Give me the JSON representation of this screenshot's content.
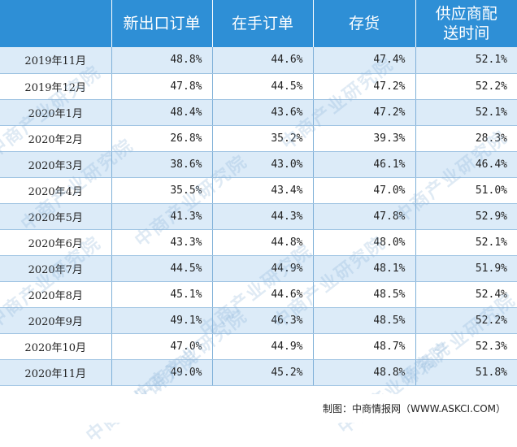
{
  "table": {
    "headers": [
      "",
      "新出口订单",
      "在手订单",
      "存货",
      "供应商配送时间"
    ],
    "rows": [
      [
        "2019年11月",
        "48.8%",
        "44.6%",
        "47.4%",
        "52.1%"
      ],
      [
        "2019年12月",
        "47.8%",
        "44.5%",
        "47.2%",
        "52.2%"
      ],
      [
        "2020年1月",
        "48.4%",
        "43.6%",
        "47.2%",
        "52.1%"
      ],
      [
        "2020年2月",
        "26.8%",
        "35.2%",
        "39.3%",
        "28.3%"
      ],
      [
        "2020年3月",
        "38.6%",
        "43.0%",
        "46.1%",
        "46.4%"
      ],
      [
        "2020年4月",
        "35.5%",
        "43.4%",
        "47.0%",
        "51.0%"
      ],
      [
        "2020年5月",
        "41.3%",
        "44.3%",
        "47.8%",
        "52.9%"
      ],
      [
        "2020年6月",
        "43.3%",
        "44.8%",
        "48.0%",
        "52.1%"
      ],
      [
        "2020年7月",
        "44.5%",
        "44.9%",
        "48.1%",
        "51.9%"
      ],
      [
        "2020年8月",
        "45.1%",
        "44.6%",
        "48.5%",
        "52.4%"
      ],
      [
        "2020年9月",
        "49.1%",
        "46.3%",
        "48.5%",
        "52.2%"
      ],
      [
        "2020年10月",
        "47.0%",
        "44.9%",
        "48.7%",
        "52.3%"
      ],
      [
        "2020年11月",
        "49.0%",
        "45.2%",
        "48.8%",
        "51.8%"
      ]
    ]
  },
  "source_note": "制图：中商情报网（WWW.ASKCI.COM）",
  "watermark_text": "中商产业研究院",
  "colors": {
    "header_bg": "#2e8fd6",
    "stripe": "#dcebf8"
  }
}
